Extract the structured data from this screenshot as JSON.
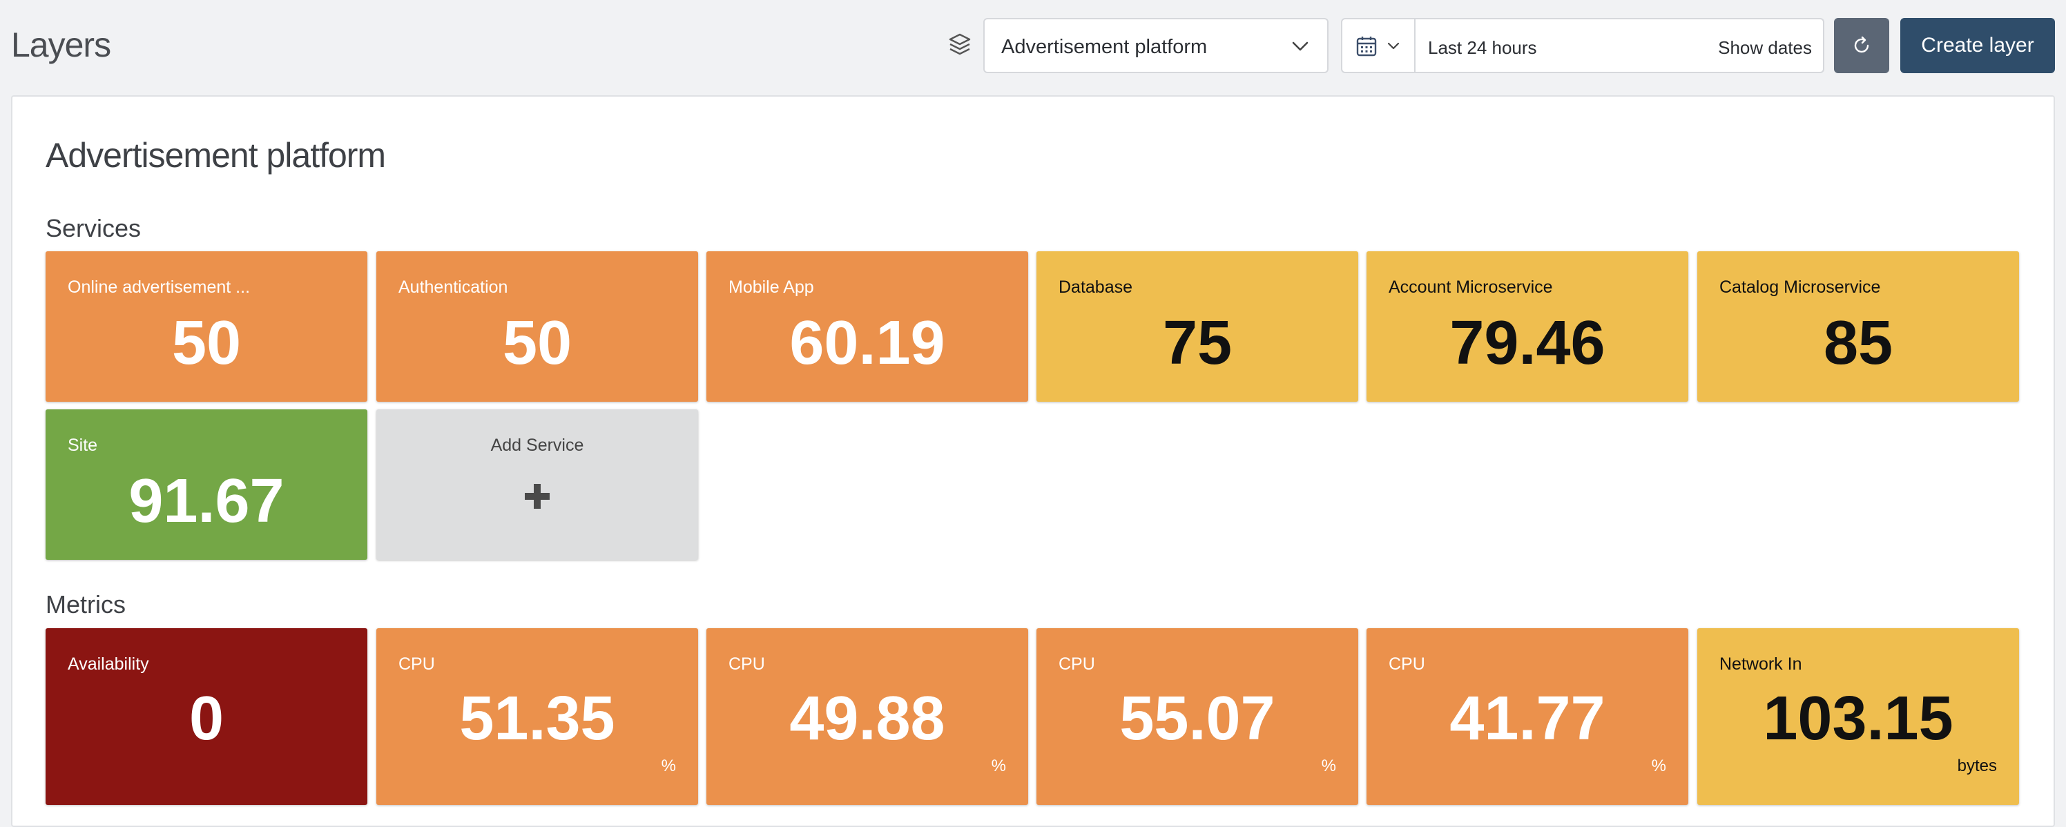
{
  "header": {
    "title": "Layers",
    "layer_select": {
      "value": "Advertisement platform"
    },
    "date_range": {
      "value": "Last 24 hours",
      "show_dates_label": "Show dates"
    },
    "create_button_label": "Create layer"
  },
  "layer": {
    "title": "Advertisement platform"
  },
  "services": {
    "title": "Services",
    "items": [
      {
        "label": "Online advertisement ...",
        "value": "50",
        "color": "#eb914c"
      },
      {
        "label": "Authentication",
        "value": "50",
        "color": "#eb914c"
      },
      {
        "label": "Mobile App",
        "value": "60.19",
        "color": "#eb914c"
      },
      {
        "label": "Database",
        "value": "75",
        "color": "#efbe4f"
      },
      {
        "label": "Account Microservice",
        "value": "79.46",
        "color": "#efbe4f"
      },
      {
        "label": "Catalog Microservice",
        "value": "85",
        "color": "#efbe4f"
      },
      {
        "label": "Site",
        "value": "91.67",
        "color": "#74a746"
      }
    ],
    "add_label": "Add Service"
  },
  "metrics": {
    "title": "Metrics",
    "items": [
      {
        "label": "Availability",
        "value": "0",
        "unit": "",
        "color": "#8b1512"
      },
      {
        "label": "CPU",
        "value": "51.35",
        "unit": "%",
        "color": "#eb914c"
      },
      {
        "label": "CPU",
        "value": "49.88",
        "unit": "%",
        "color": "#eb914c"
      },
      {
        "label": "CPU",
        "value": "55.07",
        "unit": "%",
        "color": "#eb914c"
      },
      {
        "label": "CPU",
        "value": "41.77",
        "unit": "%",
        "color": "#eb914c"
      },
      {
        "label": "Network In",
        "value": "103.15",
        "unit": "bytes",
        "color": "#efbe4f"
      }
    ]
  },
  "icons": {
    "layers": "layers-icon",
    "calendar": "calendar-icon",
    "chevron": "chevron-down-icon",
    "refresh": "refresh-icon",
    "plus": "plus-icon"
  }
}
